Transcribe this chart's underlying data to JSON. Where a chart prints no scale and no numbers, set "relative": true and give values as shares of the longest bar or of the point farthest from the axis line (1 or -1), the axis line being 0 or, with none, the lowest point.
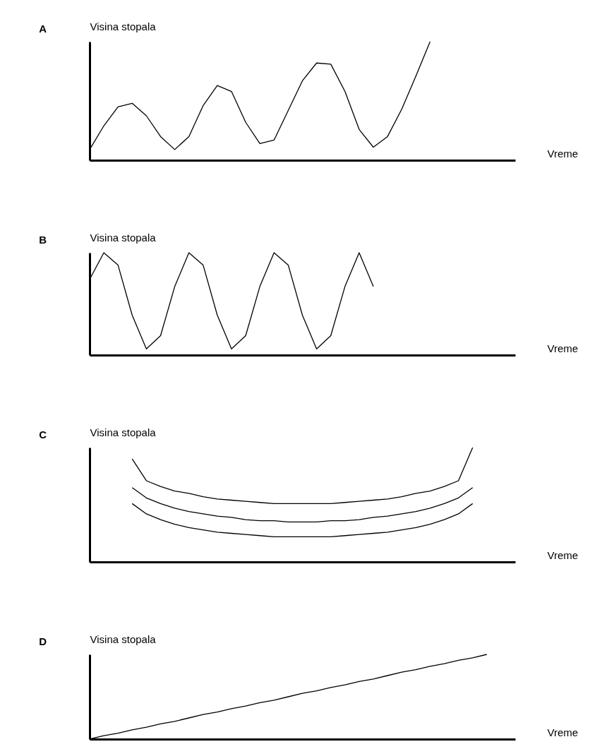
{
  "chart_data": [
    {
      "type": "line",
      "title": "A",
      "xlabel": "Vreme",
      "ylabel": "Visina stopala",
      "relative": true,
      "categories": [
        null,
        null,
        null,
        null,
        null,
        null,
        null,
        null,
        null,
        null,
        null,
        null,
        null,
        null,
        null,
        null,
        null,
        null,
        null,
        null,
        null,
        null,
        null,
        null,
        null,
        null,
        null,
        null,
        null,
        null,
        null
      ],
      "series": [
        {
          "color": "#000000",
          "values": [
            0.09,
            0.29,
            0.45,
            0.48,
            0.375,
            0.2,
            0.09,
            0.2,
            0.46,
            0.63,
            0.58,
            0.32,
            0.14,
            0.17,
            0.42,
            0.67,
            0.82,
            0.81,
            0.58,
            0.26,
            0.11,
            0.2,
            0.43,
            0.71,
            1.0,
            null,
            null,
            null,
            null,
            null,
            null
          ]
        }
      ]
    },
    {
      "type": "line",
      "title": "B",
      "xlabel": "Vreme",
      "ylabel": "Visina stopala",
      "relative": true,
      "categories": [
        null,
        null,
        null,
        null,
        null,
        null,
        null,
        null,
        null,
        null,
        null,
        null,
        null,
        null,
        null,
        null,
        null,
        null,
        null,
        null,
        null,
        null,
        null,
        null,
        null,
        null,
        null,
        null,
        null,
        null,
        null
      ],
      "series": [
        {
          "color": "#000000",
          "values": [
            0.74,
            1,
            0.88,
            0.39,
            0.06,
            0.19,
            0.67,
            1,
            0.88,
            0.39,
            0.06,
            0.19,
            0.67,
            1,
            0.88,
            0.39,
            0.06,
            0.19,
            0.67,
            1,
            0.67,
            null,
            null,
            null,
            null,
            null,
            null,
            null,
            null,
            null,
            null
          ]
        }
      ]
    },
    {
      "type": "line",
      "title": "C",
      "xlabel": "Vreme",
      "ylabel": "Visina stopala",
      "relative": true,
      "categories": [
        null,
        null,
        null,
        null,
        null,
        null,
        null,
        null,
        null,
        null,
        null,
        null,
        null,
        null,
        null,
        null,
        null,
        null,
        null,
        null,
        null,
        null,
        null,
        null,
        null,
        null,
        null,
        null,
        null,
        null,
        null
      ],
      "series": [
        {
          "color": "#000000",
          "values": [
            null,
            null,
            null,
            0.9,
            0.71,
            0.66,
            0.62,
            0.6,
            0.57,
            0.55,
            0.54,
            0.53,
            0.52,
            0.51,
            0.51,
            0.51,
            0.51,
            0.51,
            0.52,
            0.53,
            0.54,
            0.55,
            0.57,
            0.6,
            0.62,
            0.66,
            0.71,
            1.0,
            null,
            null,
            null
          ]
        },
        {
          "color": "#000000",
          "values": [
            null,
            null,
            null,
            0.65,
            0.56,
            0.51,
            0.47,
            0.44,
            0.42,
            0.4,
            0.39,
            0.37,
            0.36,
            0.36,
            0.35,
            0.35,
            0.35,
            0.36,
            0.36,
            0.37,
            0.39,
            0.4,
            0.42,
            0.44,
            0.47,
            0.51,
            0.56,
            0.65,
            null,
            null,
            null
          ]
        },
        {
          "color": "#000000",
          "values": [
            null,
            null,
            null,
            0.51,
            0.42,
            0.37,
            0.33,
            0.3,
            0.28,
            0.26,
            0.25,
            0.24,
            0.23,
            0.22,
            0.22,
            0.22,
            0.22,
            0.22,
            0.23,
            0.24,
            0.25,
            0.26,
            0.28,
            0.3,
            0.33,
            0.37,
            0.42,
            0.51,
            null,
            null,
            null
          ]
        }
      ]
    },
    {
      "type": "line",
      "title": "D",
      "xlabel": "Vreme",
      "ylabel": "Visina stopala",
      "relative": true,
      "categories": [
        null,
        null,
        null,
        null,
        null,
        null,
        null,
        null,
        null,
        null,
        null,
        null,
        null,
        null,
        null,
        null,
        null,
        null,
        null,
        null,
        null,
        null,
        null,
        null,
        null,
        null,
        null,
        null,
        null,
        null,
        null
      ],
      "series": [
        {
          "color": "#000000",
          "values": [
            0,
            0.04,
            0.07,
            0.11,
            0.14,
            0.18,
            0.21,
            0.25,
            0.29,
            0.32,
            0.36,
            0.39,
            0.43,
            0.46,
            0.5,
            0.54,
            0.57,
            0.61,
            0.64,
            0.68,
            0.71,
            0.75,
            0.79,
            0.82,
            0.86,
            0.89,
            0.93,
            0.96,
            1,
            null,
            null
          ]
        }
      ]
    }
  ]
}
